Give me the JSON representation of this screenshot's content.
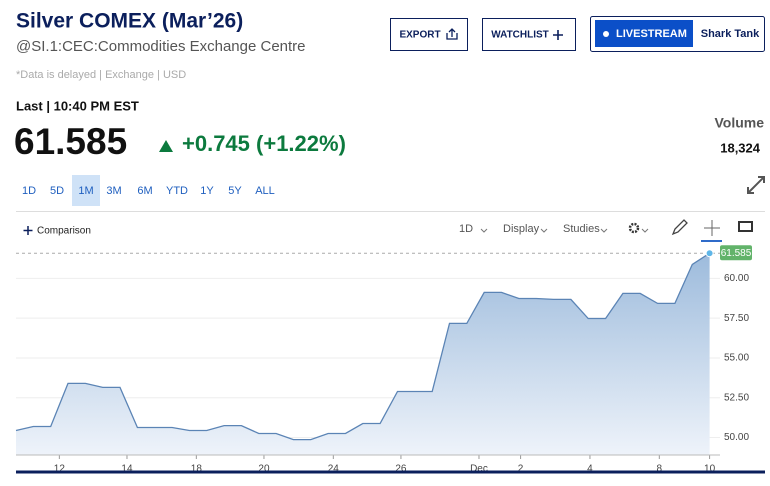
{
  "header": {
    "title": "Silver COMEX (Mar’26)",
    "symbol": "@SI.1:CEC:Commodities Exchange Centre",
    "note": "*Data is delayed | Exchange | USD"
  },
  "buttons": [
    "EXPORT",
    "WATCHLIST",
    "LIVESTREAM",
    "Shark Tank"
  ],
  "quote": {
    "last_label": "Last | 10:40 PM EST",
    "price": "61.585",
    "change": "+0.745 (+1.22%)",
    "volume_label": "Volume",
    "volume": "18,324"
  },
  "ranges": [
    "1D",
    "5D",
    "1M",
    "3M",
    "6M",
    "YTD",
    "1Y",
    "5Y",
    "ALL"
  ],
  "selected_range": 2,
  "toolbar": [
    "Comparison",
    "1D",
    "Display",
    "Studies"
  ],
  "chart_data": {
    "type": "area",
    "color": "#5b84b5",
    "x": [
      0,
      1,
      2,
      3,
      4,
      5,
      6,
      7,
      8,
      9,
      10,
      11,
      12,
      13,
      14,
      15,
      16,
      17,
      18,
      19,
      20,
      21,
      22,
      23,
      24,
      25,
      26,
      27,
      28,
      29,
      30,
      31,
      32,
      33,
      34,
      35,
      36,
      37,
      38,
      39,
      40
    ],
    "values": [
      50.44,
      50.69,
      50.69,
      53.4,
      53.4,
      53.15,
      53.15,
      50.63,
      50.63,
      50.63,
      50.44,
      50.44,
      50.75,
      50.75,
      50.25,
      50.25,
      49.87,
      49.87,
      50.25,
      50.25,
      50.88,
      50.88,
      52.89,
      52.89,
      52.89,
      57.17,
      57.17,
      59.12,
      59.12,
      58.74,
      58.74,
      58.68,
      58.68,
      57.48,
      57.48,
      59.06,
      59.06,
      58.43,
      58.43,
      60.88,
      61.585
    ],
    "xlim": [
      0,
      40.6
    ],
    "ylim": [
      48.9,
      62.1
    ],
    "xticks": [
      {
        "value": 2.5,
        "label": "12"
      },
      {
        "value": 6.4,
        "label": "14"
      },
      {
        "value": 10.4,
        "label": "18"
      },
      {
        "value": 14.3,
        "label": "20"
      },
      {
        "value": 18.3,
        "label": "24"
      },
      {
        "value": 22.2,
        "label": "26"
      },
      {
        "value": 26.7,
        "label": "Dec"
      },
      {
        "value": 29.1,
        "label": "2"
      },
      {
        "value": 33.1,
        "label": "4"
      },
      {
        "value": 37.1,
        "label": "8"
      },
      {
        "value": 40,
        "label": "10"
      }
    ],
    "yticks": [
      {
        "value": 50,
        "label": "50.00"
      },
      {
        "value": 52.5,
        "label": "52.50"
      },
      {
        "value": 55,
        "label": "55.00"
      },
      {
        "value": 57.5,
        "label": "57.50"
      },
      {
        "value": 60,
        "label": "60.00"
      }
    ]
  }
}
